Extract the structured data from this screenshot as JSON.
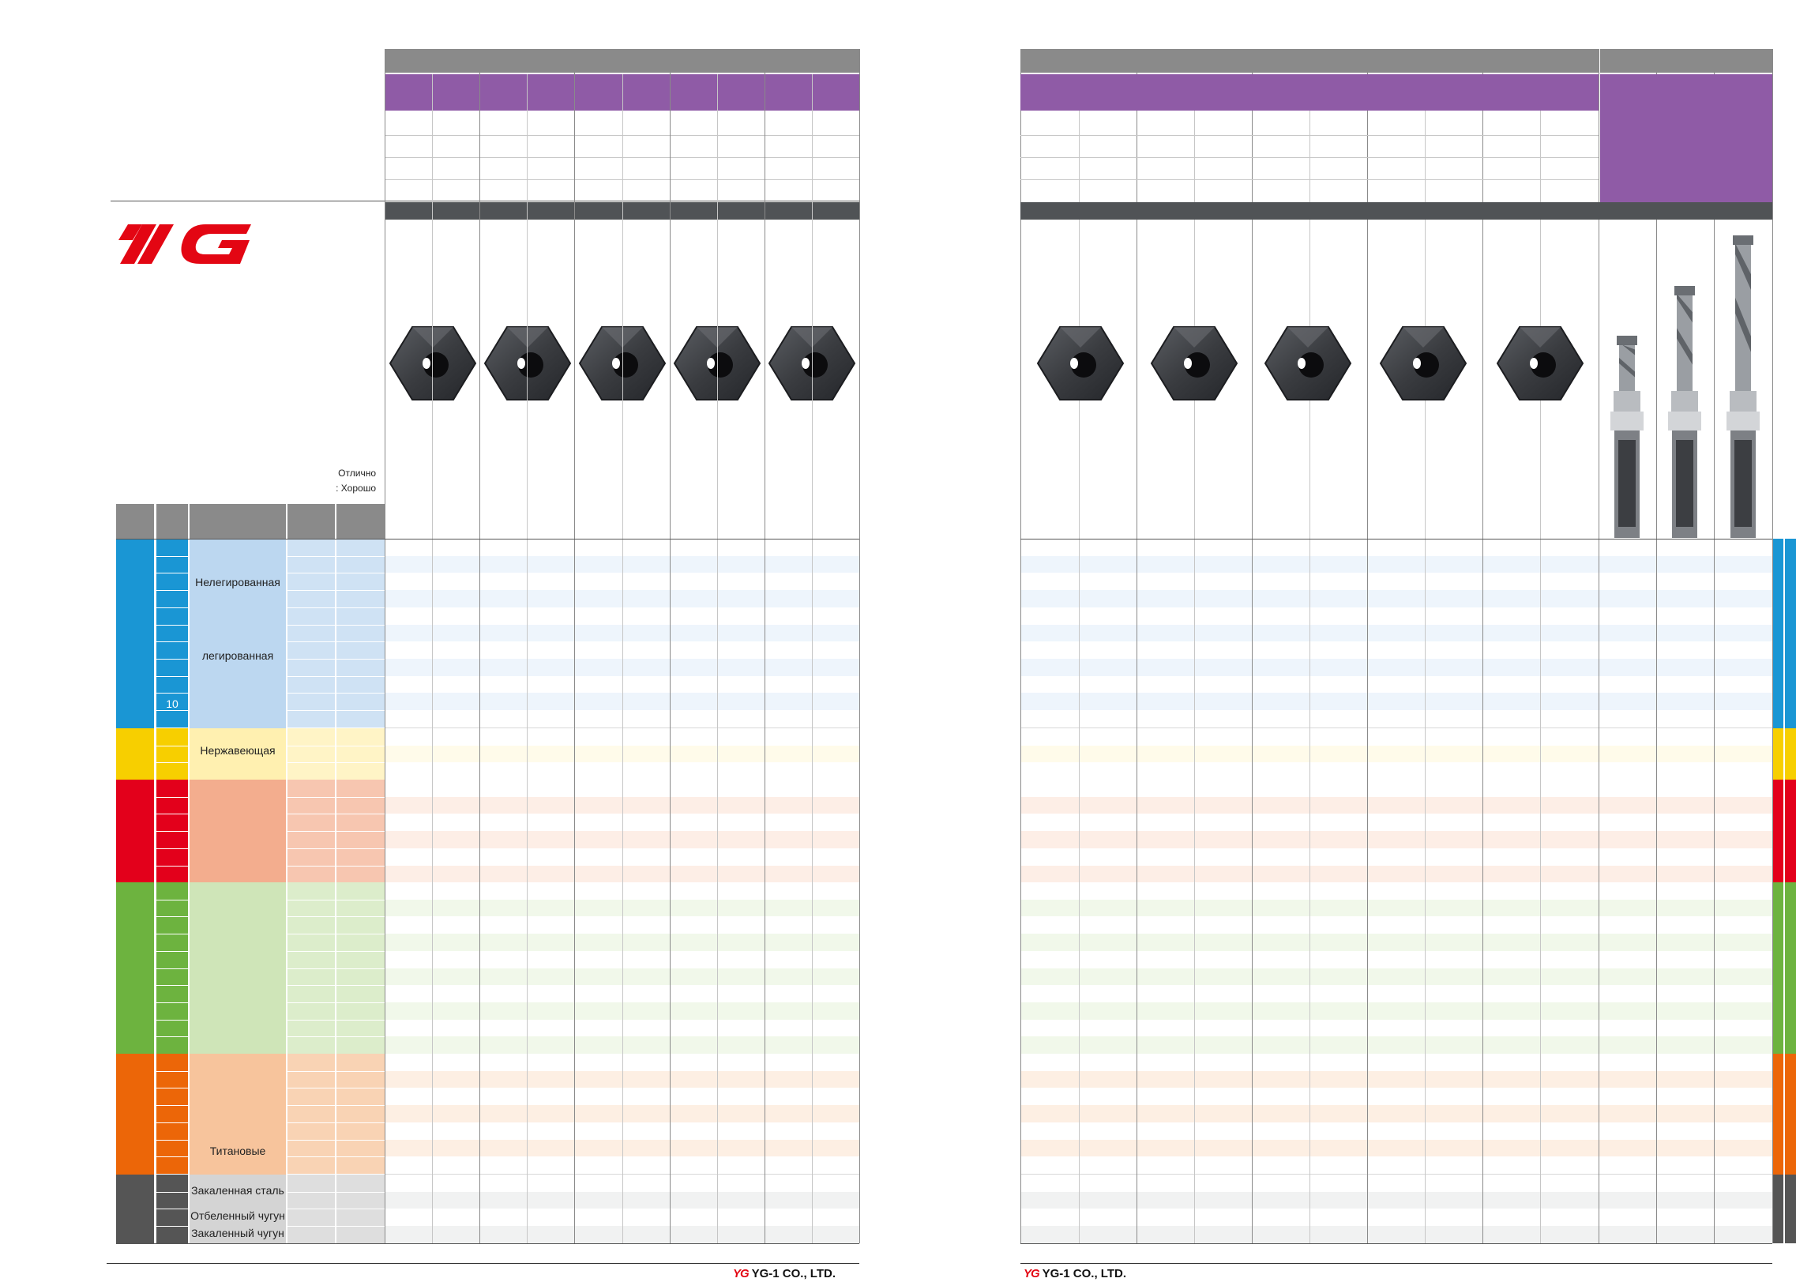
{
  "brand": {
    "logo_text": "YG",
    "company": "YG-1 CO., LTD.",
    "logo_color": "#e30613"
  },
  "legend": {
    "excellent": "Отлично",
    "good": ": Хорошо"
  },
  "materials": {
    "nonalloy": "Нелегированная",
    "alloy": "легированная",
    "row_number": "10",
    "stainless": "Нержавеющая",
    "titanium": "Титановые",
    "hardened_steel": "Закаленная сталь",
    "chilled_iron": "Отбеленный чугун",
    "hardened_iron": "Закаленный чугун"
  },
  "colors": {
    "P": "#1a96d4",
    "M": "#f7cf00",
    "K": "#e3001b",
    "N": "#6db33f",
    "S": "#ec6608",
    "H": "#555555",
    "header_gray": "#8a8a8a",
    "header_purple": "#8f5ba6",
    "header_dark": "#505356"
  },
  "icons": {
    "insert": "drill-insert-icon",
    "drill_body": "drill-body-icon"
  }
}
